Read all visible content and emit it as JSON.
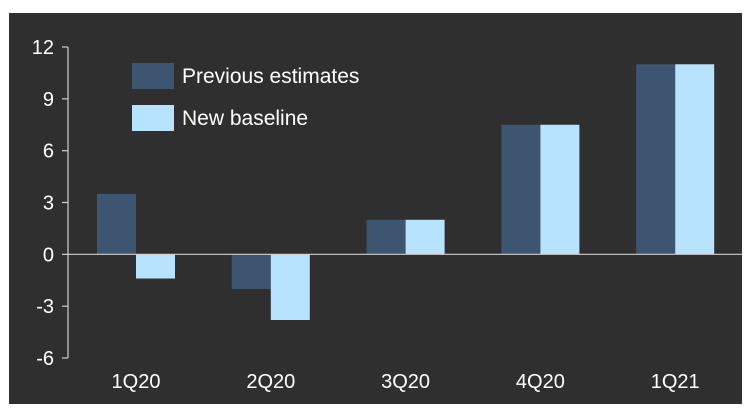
{
  "chart_data": {
    "type": "bar",
    "categories": [
      "1Q20",
      "2Q20",
      "3Q20",
      "4Q20",
      "1Q21"
    ],
    "series": [
      {
        "name": "Previous estimates",
        "color": "#3d5570",
        "values": [
          3.5,
          -2.0,
          2.0,
          7.5,
          11.0
        ]
      },
      {
        "name": "New baseline",
        "color": "#b8e3ff",
        "values": [
          -1.4,
          -3.8,
          2.0,
          7.5,
          11.0
        ]
      }
    ],
    "yticks": [
      "12",
      "9",
      "6",
      "3",
      "0",
      "-3",
      "-6"
    ],
    "ytick_values": [
      12,
      9,
      6,
      3,
      0,
      -3,
      -6
    ],
    "ylim": [
      -6,
      12
    ],
    "title": "",
    "xlabel": "",
    "ylabel": "",
    "grid": false,
    "legend_position": "top-left",
    "background_color": "#2f2f2f",
    "axis_color": "#cfcfcf"
  }
}
